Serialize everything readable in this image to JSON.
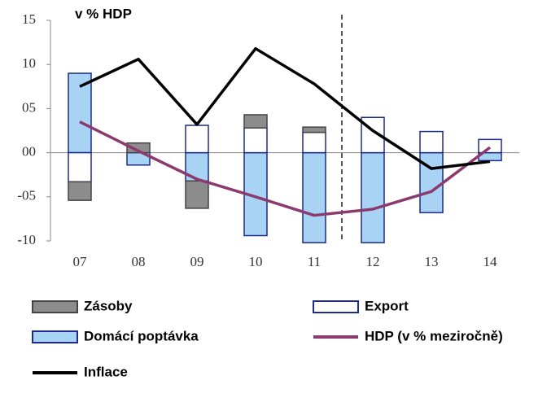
{
  "chart_data": {
    "type": "bar",
    "title": "v % HDP",
    "categories": [
      "07",
      "08",
      "09",
      "10",
      "11",
      "12",
      "13",
      "14"
    ],
    "series": [
      {
        "name": "Zásoby",
        "color": "#8c8c8c",
        "values": [
          -2.1,
          1.1,
          -3.1,
          1.5,
          0.6,
          null,
          null,
          null
        ]
      },
      {
        "name": "Export",
        "color": "#ffffff",
        "values": [
          -3.3,
          null,
          3.1,
          2.8,
          2.3,
          4.0,
          2.4,
          1.5
        ]
      },
      {
        "name": "Domácí poptávka",
        "color": "#a9d3f5",
        "values": [
          9.0,
          -1.4,
          -3.2,
          -9.4,
          -10.2,
          -10.2,
          -6.8,
          -0.9
        ]
      },
      {
        "name": "HDP (v % meziročně)",
        "color": "#8b3a70",
        "type": "line",
        "values": [
          3.5,
          0.2,
          -3.0,
          -5.0,
          -7.1,
          -6.4,
          -4.4,
          0.6
        ]
      },
      {
        "name": "Inflace",
        "color": "#000000",
        "type": "line",
        "values": [
          7.5,
          10.6,
          3.2,
          11.8,
          7.8,
          2.5,
          -1.8,
          -1.0
        ]
      }
    ],
    "ylim": [
      -10,
      15
    ],
    "yticks": [
      -10,
      {
        "value": -5,
        "label": "-05"
      },
      {
        "value": 0,
        "label": "00"
      },
      {
        "value": 5,
        "label": "05"
      },
      10,
      15
    ]
  }
}
